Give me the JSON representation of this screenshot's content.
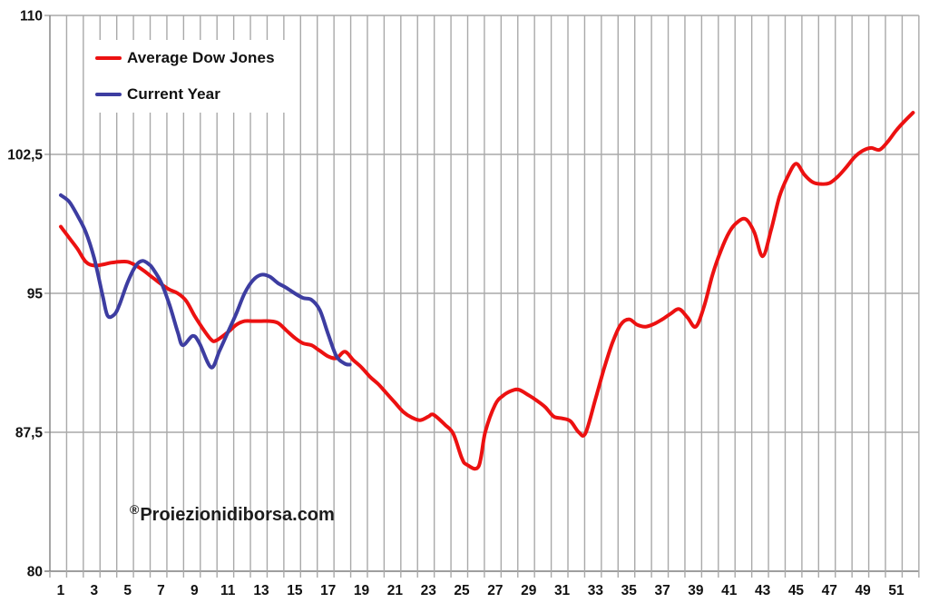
{
  "watermark": {
    "symbol": "®",
    "text": "Proiezionidiborsa.com"
  },
  "legend": {
    "items": [
      {
        "label": "Average Dow Jones",
        "color": "#ec1111"
      },
      {
        "label": "Current Year",
        "color": "#3d3da1"
      }
    ]
  },
  "chart_data": {
    "type": "line",
    "title": "",
    "xlabel": "",
    "ylabel": "",
    "xlim": [
      0,
      52
    ],
    "ylim": [
      80,
      110
    ],
    "grid": "both",
    "grid_color": "#a9a9a9",
    "axis_color": "#7f7f7f",
    "label_color": "#111111",
    "legend_position": "top-left",
    "x_ticks": [
      1,
      3,
      5,
      7,
      9,
      11,
      13,
      15,
      17,
      19,
      21,
      23,
      25,
      27,
      29,
      31,
      33,
      35,
      37,
      39,
      41,
      43,
      45,
      47,
      49,
      51
    ],
    "y_ticks": [
      {
        "value": 110,
        "label": "110"
      },
      {
        "value": 102.5,
        "label": "102,5"
      },
      {
        "value": 95,
        "label": "95"
      },
      {
        "value": 87.5,
        "label": "87,5"
      },
      {
        "value": 80,
        "label": "80"
      }
    ],
    "series": [
      {
        "name": "Average Dow Jones",
        "color": "#ec1111",
        "points": [
          [
            1,
            98.6
          ],
          [
            1.5,
            98.0
          ],
          [
            2,
            97.4
          ],
          [
            2.5,
            96.7
          ],
          [
            3,
            96.5
          ],
          [
            3.5,
            96.55
          ],
          [
            4,
            96.65
          ],
          [
            4.5,
            96.7
          ],
          [
            5,
            96.7
          ],
          [
            5.5,
            96.5
          ],
          [
            6,
            96.2
          ],
          [
            6.5,
            95.85
          ],
          [
            7,
            95.5
          ],
          [
            7.5,
            95.2
          ],
          [
            8,
            95.0
          ],
          [
            8.5,
            94.6
          ],
          [
            9,
            93.8
          ],
          [
            9.5,
            93.1
          ],
          [
            10,
            92.5
          ],
          [
            10.3,
            92.45
          ],
          [
            11,
            92.9
          ],
          [
            11.5,
            93.3
          ],
          [
            12,
            93.5
          ],
          [
            12.5,
            93.5
          ],
          [
            13,
            93.5
          ],
          [
            13.5,
            93.5
          ],
          [
            14,
            93.4
          ],
          [
            14.5,
            93.0
          ],
          [
            15,
            92.6
          ],
          [
            15.5,
            92.3
          ],
          [
            16,
            92.2
          ],
          [
            16.5,
            91.9
          ],
          [
            17,
            91.6
          ],
          [
            17.5,
            91.5
          ],
          [
            18,
            91.85
          ],
          [
            18.5,
            91.4
          ],
          [
            19,
            91.0
          ],
          [
            19.5,
            90.5
          ],
          [
            20,
            90.1
          ],
          [
            20.5,
            89.6
          ],
          [
            21,
            89.1
          ],
          [
            21.5,
            88.6
          ],
          [
            22,
            88.3
          ],
          [
            22.5,
            88.15
          ],
          [
            23,
            88.35
          ],
          [
            23.3,
            88.45
          ],
          [
            24,
            87.9
          ],
          [
            24.5,
            87.4
          ],
          [
            25,
            86.1
          ],
          [
            25.3,
            85.75
          ],
          [
            26,
            85.65
          ],
          [
            26.4,
            87.5
          ],
          [
            27,
            89.0
          ],
          [
            27.5,
            89.5
          ],
          [
            28,
            89.75
          ],
          [
            28.4,
            89.8
          ],
          [
            29,
            89.5
          ],
          [
            29.5,
            89.2
          ],
          [
            30,
            88.85
          ],
          [
            30.5,
            88.35
          ],
          [
            31,
            88.25
          ],
          [
            31.5,
            88.1
          ],
          [
            32,
            87.5
          ],
          [
            32.4,
            87.45
          ],
          [
            33,
            89.3
          ],
          [
            33.5,
            90.9
          ],
          [
            34,
            92.3
          ],
          [
            34.5,
            93.3
          ],
          [
            35,
            93.6
          ],
          [
            35.5,
            93.3
          ],
          [
            36,
            93.2
          ],
          [
            36.5,
            93.35
          ],
          [
            37,
            93.6
          ],
          [
            37.5,
            93.9
          ],
          [
            38,
            94.15
          ],
          [
            38.5,
            93.7
          ],
          [
            39,
            93.2
          ],
          [
            39.5,
            94.3
          ],
          [
            40,
            96.0
          ],
          [
            40.5,
            97.3
          ],
          [
            41,
            98.3
          ],
          [
            41.5,
            98.85
          ],
          [
            42,
            99.0
          ],
          [
            42.5,
            98.3
          ],
          [
            43,
            97.0
          ],
          [
            43.5,
            98.4
          ],
          [
            44,
            100.2
          ],
          [
            44.5,
            101.3
          ],
          [
            45,
            102.0
          ],
          [
            45.5,
            101.4
          ],
          [
            46,
            101.0
          ],
          [
            46.5,
            100.9
          ],
          [
            47,
            100.95
          ],
          [
            47.5,
            101.3
          ],
          [
            48,
            101.8
          ],
          [
            48.5,
            102.35
          ],
          [
            49,
            102.7
          ],
          [
            49.5,
            102.85
          ],
          [
            50,
            102.75
          ],
          [
            50.5,
            103.2
          ],
          [
            51,
            103.8
          ],
          [
            51.5,
            104.3
          ],
          [
            52,
            104.75
          ]
        ]
      },
      {
        "name": "Current Year",
        "color": "#3d3da1",
        "points": [
          [
            1,
            100.3
          ],
          [
            1.5,
            99.95
          ],
          [
            2,
            99.2
          ],
          [
            2.5,
            98.3
          ],
          [
            3,
            96.9
          ],
          [
            3.5,
            94.9
          ],
          [
            3.8,
            93.8
          ],
          [
            4.2,
            93.85
          ],
          [
            4.5,
            94.35
          ],
          [
            5,
            95.6
          ],
          [
            5.5,
            96.5
          ],
          [
            5.9,
            96.75
          ],
          [
            6.3,
            96.55
          ],
          [
            6.5,
            96.35
          ],
          [
            7,
            95.6
          ],
          [
            7.5,
            94.4
          ],
          [
            8,
            92.9
          ],
          [
            8.3,
            92.2
          ],
          [
            8.9,
            92.7
          ],
          [
            9.3,
            92.3
          ],
          [
            10,
            91.0
          ],
          [
            10.5,
            91.9
          ],
          [
            11,
            92.9
          ],
          [
            11.5,
            93.9
          ],
          [
            12,
            95.0
          ],
          [
            12.5,
            95.7
          ],
          [
            13,
            96.0
          ],
          [
            13.5,
            95.9
          ],
          [
            14,
            95.55
          ],
          [
            14.5,
            95.3
          ],
          [
            15,
            95.0
          ],
          [
            15.5,
            94.75
          ],
          [
            16,
            94.65
          ],
          [
            16.5,
            94.1
          ],
          [
            17,
            92.8
          ],
          [
            17.5,
            91.6
          ],
          [
            18,
            91.2
          ],
          [
            18.3,
            91.15
          ]
        ]
      }
    ]
  }
}
